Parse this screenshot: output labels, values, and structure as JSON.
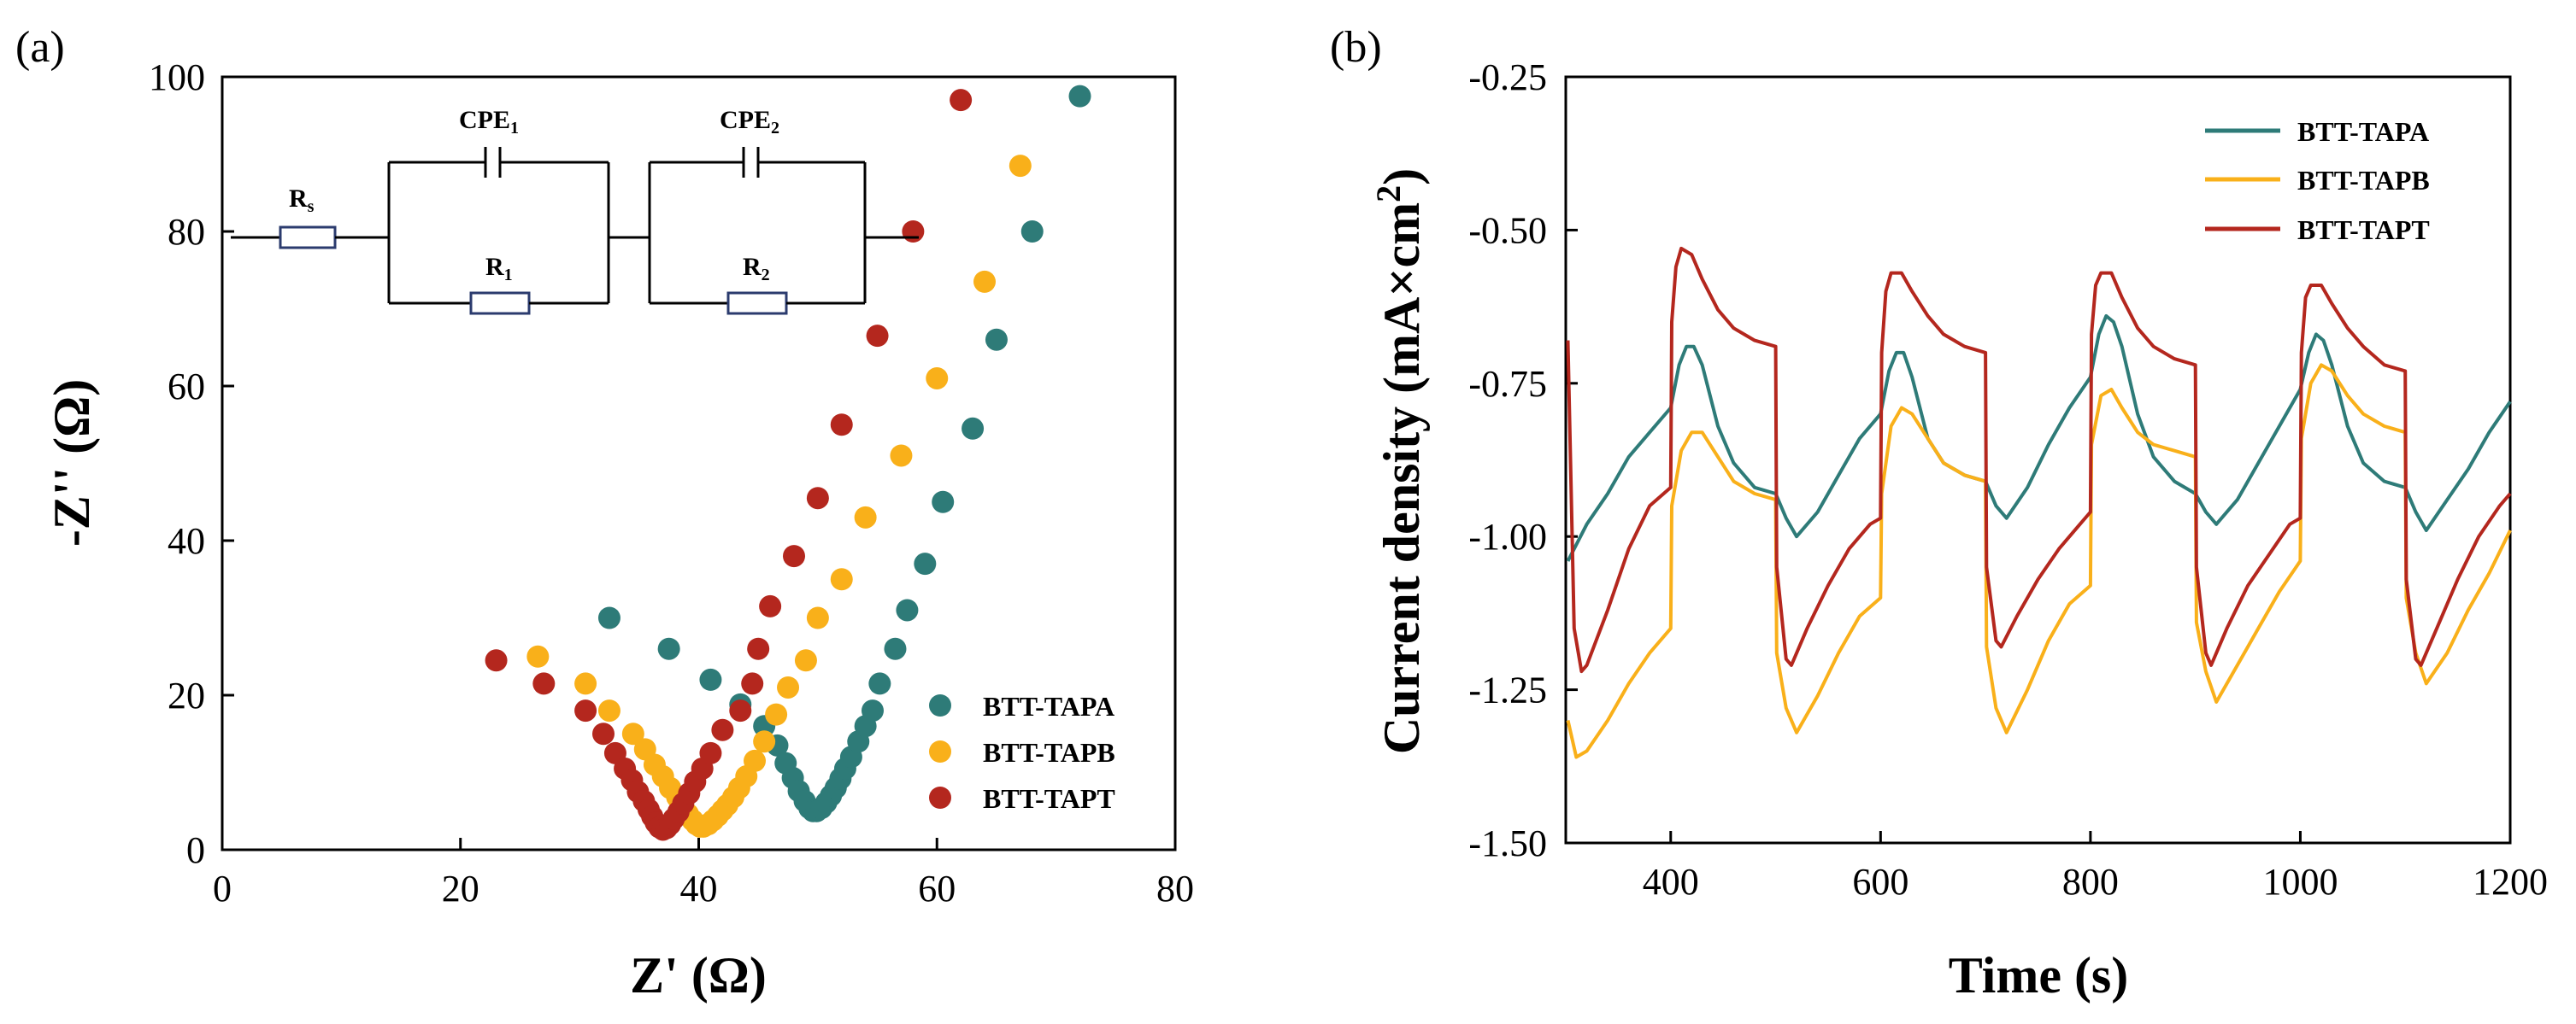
{
  "panels": {
    "a_label": "(a)",
    "b_label": "(b)"
  },
  "colors": {
    "BTT-TAPA": "#2e7b78",
    "BTT-TAPB": "#f9b01a",
    "BTT-TAPT": "#b4271e"
  },
  "circuit": {
    "rs": "R",
    "rs_sub": "s",
    "cpe1": "CPE",
    "cpe1_sub": "1",
    "r1": "R",
    "r1_sub": "1",
    "cpe2": "CPE",
    "cpe2_sub": "2",
    "r2": "R",
    "r2_sub": "2"
  },
  "chart_data": [
    {
      "type": "scatter",
      "title": "",
      "xlabel": "Z' (Ω)",
      "ylabel": "-Z'' (Ω)",
      "xlim": [
        0,
        80
      ],
      "ylim": [
        0,
        100
      ],
      "xticks": [
        0,
        20,
        40,
        60,
        80
      ],
      "yticks": [
        0,
        20,
        40,
        60,
        80,
        100
      ],
      "legend_position": "bottom-right",
      "series": [
        {
          "name": "BTT-TAPA",
          "points": [
            [
              32.5,
              30
            ],
            [
              37.5,
              26
            ],
            [
              41,
              22
            ],
            [
              43.5,
              18.8
            ],
            [
              45.5,
              16
            ],
            [
              46.6,
              13.5
            ],
            [
              47.3,
              11.2
            ],
            [
              47.9,
              9.3
            ],
            [
              48.4,
              7.6
            ],
            [
              48.9,
              6.3
            ],
            [
              49.3,
              5.4
            ],
            [
              49.6,
              5
            ],
            [
              49.9,
              5
            ],
            [
              50.3,
              5.4
            ],
            [
              50.7,
              6.1
            ],
            [
              51.1,
              7
            ],
            [
              51.5,
              8
            ],
            [
              51.9,
              9.2
            ],
            [
              52.3,
              10.5
            ],
            [
              52.8,
              12
            ],
            [
              53.4,
              14
            ],
            [
              54,
              16
            ],
            [
              54.6,
              18
            ],
            [
              55.2,
              21.5
            ],
            [
              56.5,
              26
            ],
            [
              57.5,
              31
            ],
            [
              59,
              37
            ],
            [
              60.5,
              45
            ],
            [
              63,
              54.5
            ],
            [
              65,
              66
            ],
            [
              68,
              80
            ],
            [
              72,
              97.5
            ]
          ]
        },
        {
          "name": "BTT-TAPB",
          "points": [
            [
              26.5,
              25
            ],
            [
              30.5,
              21.5
            ],
            [
              32.5,
              18
            ],
            [
              34.5,
              15
            ],
            [
              35.5,
              13
            ],
            [
              36.3,
              11
            ],
            [
              37,
              9.5
            ],
            [
              37.6,
              8
            ],
            [
              38.2,
              6.8
            ],
            [
              38.7,
              5.6
            ],
            [
              39.1,
              4.6
            ],
            [
              39.5,
              3.8
            ],
            [
              39.8,
              3.3
            ],
            [
              40.1,
              3
            ],
            [
              40.4,
              3
            ],
            [
              40.8,
              3.3
            ],
            [
              41.2,
              3.8
            ],
            [
              41.6,
              4.4
            ],
            [
              42,
              5.1
            ],
            [
              42.4,
              5.8
            ],
            [
              42.9,
              6.8
            ],
            [
              43.4,
              8
            ],
            [
              44,
              9.5
            ],
            [
              44.7,
              11.5
            ],
            [
              45.5,
              14
            ],
            [
              46.5,
              17.5
            ],
            [
              47.5,
              21
            ],
            [
              49,
              24.5
            ],
            [
              50,
              30
            ],
            [
              52,
              35
            ],
            [
              54,
              43
            ],
            [
              57,
              51
            ],
            [
              60,
              61
            ],
            [
              64,
              73.5
            ],
            [
              67,
              88.5
            ]
          ]
        },
        {
          "name": "BTT-TAPT",
          "points": [
            [
              23,
              24.5
            ],
            [
              27,
              21.5
            ],
            [
              30.5,
              18
            ],
            [
              32,
              15
            ],
            [
              33,
              12.5
            ],
            [
              33.8,
              10.5
            ],
            [
              34.4,
              9
            ],
            [
              34.9,
              7.5
            ],
            [
              35.4,
              6.3
            ],
            [
              35.8,
              5.2
            ],
            [
              36.1,
              4.3
            ],
            [
              36.4,
              3.5
            ],
            [
              36.7,
              2.9
            ],
            [
              37,
              2.6
            ],
            [
              37.3,
              2.8
            ],
            [
              37.6,
              3.3
            ],
            [
              37.9,
              4
            ],
            [
              38.3,
              4.9
            ],
            [
              38.7,
              6
            ],
            [
              39.2,
              7.3
            ],
            [
              39.7,
              8.8
            ],
            [
              40.3,
              10.5
            ],
            [
              41,
              12.5
            ],
            [
              42,
              15.5
            ],
            [
              43.5,
              18
            ],
            [
              44.5,
              21.5
            ],
            [
              45,
              26
            ],
            [
              46,
              31.5
            ],
            [
              48,
              38
            ],
            [
              50,
              45.5
            ],
            [
              52,
              55
            ],
            [
              55,
              66.5
            ],
            [
              58,
              80
            ],
            [
              62,
              97
            ]
          ]
        }
      ]
    },
    {
      "type": "line",
      "title": "",
      "xlabel": "Time (s)",
      "ylabel": "Current density (mA×cm²)",
      "xlim": [
        300,
        1200
      ],
      "ylim": [
        -1.5,
        -0.25
      ],
      "xticks": [
        400,
        600,
        800,
        1000,
        1200
      ],
      "yticks": [
        -0.25,
        -0.5,
        -0.75,
        -1.0,
        -1.25,
        -1.5
      ],
      "xtick_labels": [
        "400",
        "600",
        "800",
        "1000",
        "1200"
      ],
      "ytick_labels": [
        "-0.25",
        "-0.50",
        "-0.75",
        "-1.00",
        "-1.25",
        "-1.50"
      ],
      "legend_position": "top-right",
      "series": [
        {
          "name": "BTT-TAPA",
          "x": [
            302,
            320,
            340,
            360,
            380,
            400,
            408,
            415,
            422,
            430,
            445,
            460,
            480,
            500,
            510,
            520,
            540,
            560,
            580,
            600,
            608,
            615,
            622,
            630,
            645,
            660,
            680,
            700,
            710,
            720,
            740,
            760,
            780,
            800,
            808,
            815,
            822,
            830,
            845,
            860,
            880,
            900,
            910,
            920,
            940,
            960,
            980,
            1000,
            1008,
            1015,
            1022,
            1030,
            1045,
            1060,
            1080,
            1100,
            1110,
            1120,
            1140,
            1160,
            1180,
            1200
          ],
          "y": [
            -1.04,
            -0.98,
            -0.93,
            -0.87,
            -0.83,
            -0.79,
            -0.72,
            -0.69,
            -0.69,
            -0.72,
            -0.82,
            -0.88,
            -0.92,
            -0.93,
            -0.97,
            -1.0,
            -0.96,
            -0.9,
            -0.84,
            -0.8,
            -0.73,
            -0.7,
            -0.7,
            -0.74,
            -0.84,
            -0.88,
            -0.9,
            -0.91,
            -0.95,
            -0.97,
            -0.92,
            -0.85,
            -0.79,
            -0.74,
            -0.67,
            -0.64,
            -0.65,
            -0.69,
            -0.8,
            -0.87,
            -0.91,
            -0.93,
            -0.96,
            -0.98,
            -0.94,
            -0.88,
            -0.82,
            -0.76,
            -0.7,
            -0.67,
            -0.68,
            -0.72,
            -0.82,
            -0.88,
            -0.91,
            -0.92,
            -0.96,
            -0.99,
            -0.94,
            -0.89,
            -0.83,
            -0.78
          ]
        },
        {
          "name": "BTT-TAPB",
          "x": [
            302,
            310,
            320,
            340,
            360,
            380,
            400,
            401,
            410,
            420,
            430,
            445,
            460,
            480,
            500,
            501,
            510,
            520,
            540,
            560,
            580,
            600,
            601,
            610,
            620,
            630,
            645,
            660,
            680,
            700,
            701,
            710,
            720,
            740,
            760,
            780,
            800,
            801,
            810,
            820,
            830,
            845,
            860,
            880,
            900,
            901,
            910,
            920,
            940,
            960,
            980,
            1000,
            1001,
            1010,
            1020,
            1030,
            1045,
            1060,
            1080,
            1100,
            1101,
            1110,
            1120,
            1140,
            1160,
            1180,
            1200
          ],
          "y": [
            -1.3,
            -1.36,
            -1.35,
            -1.3,
            -1.24,
            -1.19,
            -1.15,
            -0.95,
            -0.86,
            -0.83,
            -0.83,
            -0.87,
            -0.91,
            -0.93,
            -0.94,
            -1.19,
            -1.28,
            -1.32,
            -1.26,
            -1.19,
            -1.13,
            -1.1,
            -0.93,
            -0.82,
            -0.79,
            -0.8,
            -0.84,
            -0.88,
            -0.9,
            -0.91,
            -1.18,
            -1.28,
            -1.32,
            -1.25,
            -1.17,
            -1.11,
            -1.08,
            -0.85,
            -0.77,
            -0.76,
            -0.79,
            -0.83,
            -0.85,
            -0.86,
            -0.87,
            -1.14,
            -1.22,
            -1.27,
            -1.21,
            -1.15,
            -1.09,
            -1.04,
            -0.84,
            -0.75,
            -0.72,
            -0.73,
            -0.77,
            -0.8,
            -0.82,
            -0.83,
            -1.1,
            -1.19,
            -1.24,
            -1.19,
            -1.12,
            -1.06,
            -0.99
          ]
        },
        {
          "name": "BTT-TAPT",
          "x": [
            302,
            308,
            315,
            320,
            340,
            360,
            380,
            400,
            401,
            405,
            410,
            420,
            430,
            445,
            460,
            480,
            500,
            501,
            510,
            515,
            530,
            550,
            570,
            590,
            600,
            601,
            605,
            610,
            620,
            630,
            645,
            660,
            680,
            700,
            701,
            710,
            715,
            730,
            750,
            770,
            790,
            800,
            801,
            805,
            810,
            820,
            830,
            845,
            860,
            880,
            900,
            901,
            910,
            915,
            930,
            950,
            970,
            990,
            1000,
            1001,
            1005,
            1010,
            1020,
            1030,
            1045,
            1060,
            1080,
            1100,
            1101,
            1110,
            1115,
            1130,
            1150,
            1170,
            1190,
            1200
          ],
          "y": [
            -0.68,
            -1.15,
            -1.22,
            -1.21,
            -1.12,
            -1.02,
            -0.95,
            -0.92,
            -0.65,
            -0.56,
            -0.53,
            -0.54,
            -0.58,
            -0.63,
            -0.66,
            -0.68,
            -0.69,
            -1.05,
            -1.2,
            -1.21,
            -1.15,
            -1.08,
            -1.02,
            -0.98,
            -0.97,
            -0.7,
            -0.6,
            -0.57,
            -0.57,
            -0.6,
            -0.64,
            -0.67,
            -0.69,
            -0.7,
            -1.05,
            -1.17,
            -1.18,
            -1.13,
            -1.07,
            -1.02,
            -0.98,
            -0.96,
            -0.67,
            -0.59,
            -0.57,
            -0.57,
            -0.61,
            -0.66,
            -0.69,
            -0.71,
            -0.72,
            -1.05,
            -1.19,
            -1.21,
            -1.15,
            -1.08,
            -1.03,
            -0.98,
            -0.97,
            -0.7,
            -0.61,
            -0.59,
            -0.59,
            -0.62,
            -0.66,
            -0.69,
            -0.72,
            -0.73,
            -1.07,
            -1.2,
            -1.21,
            -1.15,
            -1.07,
            -1.0,
            -0.95,
            -0.93
          ]
        }
      ]
    }
  ]
}
